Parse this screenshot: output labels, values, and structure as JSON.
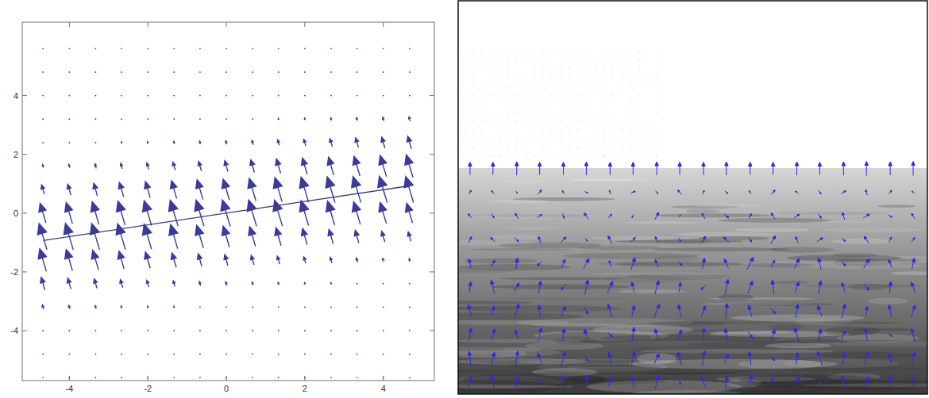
{
  "chart_data": [
    {
      "type": "vector_field",
      "xlim": [
        -5.2,
        5.3
      ],
      "ylim": [
        -5.7,
        6.5
      ],
      "xticks": [
        -4,
        -2,
        0,
        2,
        4
      ],
      "yticks": [
        -4,
        -2,
        0,
        2,
        4
      ],
      "color": "#3b3b99",
      "x": [
        -4.67,
        -4,
        -3.33,
        -2.67,
        -2,
        -1.33,
        -0.67,
        0,
        0.67,
        1.33,
        2,
        2.67,
        3.33,
        4,
        4.67
      ],
      "y": [
        5.6,
        4.8,
        4.0,
        3.2,
        2.4,
        1.6,
        0.8,
        0,
        -0.8,
        -1.6,
        -2.4,
        -3.2,
        -4.0,
        -4.8,
        -5.6
      ],
      "u": [
        [
          0,
          0,
          0,
          0,
          0,
          0,
          0,
          0,
          0,
          0,
          0,
          0,
          0,
          0,
          0
        ],
        [
          0,
          0,
          0,
          0,
          0,
          0,
          0,
          0,
          0,
          0,
          0,
          0,
          0,
          0,
          0
        ],
        [
          0,
          0,
          0,
          0,
          0,
          0,
          0,
          0,
          0,
          0,
          0,
          0,
          0,
          -0.01,
          -0.01
        ],
        [
          0,
          0,
          0,
          0,
          0,
          0,
          0,
          -0.01,
          -0.01,
          -0.01,
          -0.01,
          -0.02,
          -0.02,
          -0.03,
          -0.03
        ],
        [
          0,
          -0.01,
          -0.01,
          -0.01,
          -0.01,
          -0.02,
          -0.02,
          -0.03,
          -0.03,
          -0.04,
          -0.05,
          -0.06,
          -0.07,
          -0.08,
          -0.09
        ],
        [
          -0.02,
          -0.03,
          -0.03,
          -0.04,
          -0.05,
          -0.06,
          -0.07,
          -0.08,
          -0.09,
          -0.11,
          -0.12,
          -0.13,
          -0.15,
          -0.16,
          -0.17
        ],
        [
          -0.07,
          -0.08,
          -0.09,
          -0.11,
          -0.12,
          -0.13,
          -0.15,
          -0.16,
          -0.17,
          -0.18,
          -0.19,
          -0.2,
          -0.2,
          -0.2,
          -0.2
        ],
        [
          -0.15,
          -0.16,
          -0.17,
          -0.18,
          -0.19,
          -0.2,
          -0.2,
          -0.2,
          -0.2,
          -0.2,
          -0.19,
          -0.18,
          -0.17,
          -0.16,
          -0.15
        ],
        [
          -0.2,
          -0.2,
          -0.2,
          -0.2,
          -0.19,
          -0.18,
          -0.17,
          -0.16,
          -0.15,
          -0.13,
          -0.12,
          -0.11,
          -0.09,
          -0.08,
          -0.07
        ],
        [
          -0.17,
          -0.16,
          -0.15,
          -0.13,
          -0.12,
          -0.11,
          -0.09,
          -0.08,
          -0.07,
          -0.06,
          -0.05,
          -0.04,
          -0.03,
          -0.03,
          -0.02
        ],
        [
          -0.09,
          -0.08,
          -0.07,
          -0.06,
          -0.05,
          -0.04,
          -0.03,
          -0.03,
          -0.02,
          -0.02,
          -0.01,
          -0.01,
          -0.01,
          -0.01,
          0
        ],
        [
          -0.03,
          -0.03,
          -0.02,
          -0.02,
          -0.01,
          -0.01,
          -0.01,
          -0.01,
          0,
          0,
          0,
          0,
          0,
          0,
          0
        ],
        [
          -0.01,
          -0.01,
          0,
          0,
          0,
          0,
          0,
          0,
          0,
          0,
          0,
          0,
          0,
          0,
          0
        ],
        [
          0,
          0,
          0,
          0,
          0,
          0,
          0,
          0,
          0,
          0,
          0,
          0,
          0,
          0,
          0
        ],
        [
          0,
          0,
          0,
          0,
          0,
          0,
          0,
          0,
          0,
          0,
          0,
          0,
          0,
          0,
          0
        ]
      ],
      "v": [
        [
          0,
          0,
          0,
          0,
          0,
          0,
          0,
          0,
          0,
          0,
          0,
          0,
          0,
          0,
          0
        ],
        [
          0,
          0,
          0,
          0,
          0,
          0,
          0,
          0,
          0,
          0,
          0,
          0,
          0,
          0,
          0.01
        ],
        [
          0,
          0,
          0,
          0,
          0,
          0,
          0,
          0,
          0.01,
          0.01,
          0.01,
          0.01,
          0.02,
          0.03,
          0.03
        ],
        [
          0,
          0,
          0.01,
          0.01,
          0.01,
          0.01,
          0.02,
          0.03,
          0.03,
          0.05,
          0.06,
          0.08,
          0.1,
          0.12,
          0.15
        ],
        [
          0.02,
          0.03,
          0.03,
          0.05,
          0.06,
          0.08,
          0.1,
          0.12,
          0.15,
          0.19,
          0.22,
          0.27,
          0.32,
          0.37,
          0.43
        ],
        [
          0.1,
          0.12,
          0.15,
          0.19,
          0.22,
          0.27,
          0.32,
          0.37,
          0.43,
          0.49,
          0.55,
          0.61,
          0.67,
          0.72,
          0.77
        ],
        [
          0.32,
          0.37,
          0.43,
          0.49,
          0.55,
          0.61,
          0.67,
          0.72,
          0.77,
          0.82,
          0.85,
          0.88,
          0.89,
          0.9,
          0.89
        ],
        [
          0.67,
          0.72,
          0.77,
          0.82,
          0.85,
          0.88,
          0.89,
          0.9,
          0.89,
          0.88,
          0.85,
          0.82,
          0.77,
          0.72,
          0.67
        ],
        [
          0.89,
          0.9,
          0.89,
          0.88,
          0.85,
          0.82,
          0.77,
          0.72,
          0.67,
          0.61,
          0.55,
          0.49,
          0.43,
          0.37,
          0.32
        ],
        [
          0.77,
          0.72,
          0.67,
          0.61,
          0.55,
          0.49,
          0.43,
          0.37,
          0.32,
          0.27,
          0.22,
          0.19,
          0.15,
          0.12,
          0.1
        ],
        [
          0.43,
          0.37,
          0.32,
          0.27,
          0.22,
          0.19,
          0.15,
          0.12,
          0.1,
          0.08,
          0.06,
          0.05,
          0.03,
          0.03,
          0.02
        ],
        [
          0.15,
          0.12,
          0.1,
          0.08,
          0.06,
          0.05,
          0.03,
          0.03,
          0.02,
          0.01,
          0.01,
          0.01,
          0.01,
          0,
          0
        ],
        [
          0.03,
          0.03,
          0.02,
          0.01,
          0.01,
          0.01,
          0.01,
          0,
          0,
          0,
          0,
          0,
          0,
          0,
          0
        ],
        [
          0.01,
          0,
          0,
          0,
          0,
          0,
          0,
          0,
          0,
          0,
          0,
          0,
          0,
          0,
          0
        ],
        [
          0,
          0,
          0,
          0,
          0,
          0,
          0,
          0,
          0,
          0,
          0,
          0,
          0,
          0,
          0
        ]
      ],
      "series": [
        {
          "type": "line",
          "color": "#3b3b80",
          "x": [
            -4.67,
            4.67
          ],
          "values": [
            -0.93,
            0.93
          ]
        }
      ]
    },
    {
      "type": "vector_field",
      "tick_labels": false,
      "xlim": [
        0,
        593
      ],
      "ylim": [
        0,
        497
      ],
      "color": "#2a2ae6",
      "x": [
        15,
        44,
        74,
        103,
        133,
        162,
        192,
        221,
        251,
        280,
        310,
        339,
        369,
        398,
        428,
        457,
        487,
        516,
        546,
        575
      ],
      "y": [
        285,
        255,
        225,
        195,
        165,
        135,
        105,
        75,
        45,
        15
      ],
      "u": [
        [
          0,
          0,
          0,
          0,
          0,
          0,
          0,
          0,
          0,
          0,
          0,
          0,
          0,
          0,
          0,
          0,
          0,
          0,
          0,
          0
        ],
        [
          3,
          -4,
          2,
          5,
          -3,
          4,
          -2,
          6,
          3,
          -5,
          2,
          4,
          -3,
          5,
          -4,
          3,
          6,
          -2,
          4,
          -3
        ],
        [
          -5,
          3,
          -4,
          6,
          2,
          -6,
          4,
          -3,
          5,
          2,
          -4,
          6,
          3,
          -5,
          7,
          4,
          -3,
          8,
          5,
          -4
        ],
        [
          4,
          -6,
          5,
          -3,
          7,
          3,
          -5,
          6,
          -4,
          3,
          5,
          -7,
          4,
          6,
          -3,
          8,
          5,
          -6,
          3,
          4
        ],
        [
          -3,
          5,
          2,
          -6,
          4,
          7,
          -2,
          5,
          -4,
          6,
          3,
          -5,
          8,
          4,
          6,
          -3,
          5,
          7,
          -4,
          3
        ],
        [
          2,
          -4,
          6,
          3,
          -5,
          4,
          7,
          -3,
          5,
          2,
          -6,
          4,
          6,
          -2,
          5,
          3,
          -4,
          6,
          2,
          -5
        ],
        [
          -4,
          3,
          5,
          -2,
          6,
          4,
          -5,
          3,
          7,
          -3,
          5,
          2,
          -4,
          6,
          3,
          -5,
          4,
          2,
          -3,
          5
        ],
        [
          3,
          5,
          -3,
          4,
          2,
          -5,
          6,
          3,
          -4,
          5,
          2,
          -3,
          6,
          4,
          -5,
          3,
          5,
          -2,
          4,
          -4
        ],
        [
          -2,
          4,
          3,
          -5,
          5,
          2,
          -3,
          4,
          6,
          -4,
          3,
          5,
          -2,
          4,
          2,
          -6,
          3,
          5,
          -3,
          4
        ],
        [
          4,
          -3,
          2,
          5,
          -4,
          3,
          6,
          -2,
          4,
          3,
          -5,
          2,
          4,
          -3,
          5,
          3,
          -4,
          6,
          2,
          -3
        ]
      ],
      "v": [
        [
          16,
          16,
          17,
          16,
          16,
          17,
          16,
          16,
          17,
          16,
          16,
          17,
          16,
          16,
          17,
          16,
          17,
          18,
          17,
          18
        ],
        [
          5,
          4,
          -3,
          6,
          4,
          -2,
          5,
          3,
          -4,
          6,
          5,
          -3,
          4,
          6,
          3,
          -5,
          4,
          7,
          5,
          3
        ],
        [
          6,
          -5,
          7,
          4,
          -6,
          8,
          5,
          -4,
          9,
          3,
          7,
          -5,
          6,
          8,
          4,
          -6,
          9,
          5,
          -3,
          7
        ],
        [
          8,
          6,
          -5,
          9,
          7,
          -4,
          10,
          6,
          8,
          -5,
          9,
          7,
          -6,
          10,
          8,
          5,
          -4,
          9,
          7,
          6
        ],
        [
          12,
          9,
          14,
          -6,
          11,
          13,
          8,
          15,
          10,
          -5,
          14,
          12,
          16,
          9,
          13,
          15,
          -7,
          12,
          10,
          14
        ],
        [
          14,
          18,
          11,
          16,
          -7,
          19,
          15,
          13,
          17,
          12,
          -6,
          20,
          16,
          18,
          14,
          17,
          12,
          -8,
          15,
          13
        ],
        [
          16,
          13,
          19,
          15,
          12,
          -8,
          17,
          14,
          18,
          16,
          13,
          19,
          15,
          -7,
          17,
          14,
          18,
          12,
          16,
          15
        ],
        [
          17,
          15,
          12,
          18,
          16,
          14,
          -6,
          19,
          15,
          13,
          17,
          16,
          -8,
          14,
          18,
          15,
          12,
          17,
          -5,
          16
        ],
        [
          18,
          16,
          19,
          14,
          17,
          -7,
          15,
          18,
          13,
          16,
          19,
          12,
          17,
          -6,
          15,
          18,
          14,
          16,
          13,
          17
        ],
        [
          15,
          17,
          14,
          -5,
          16,
          18,
          13,
          15,
          17,
          -6,
          14,
          16,
          18,
          12,
          15,
          -7,
          16,
          14,
          17,
          15
        ]
      ]
    }
  ]
}
